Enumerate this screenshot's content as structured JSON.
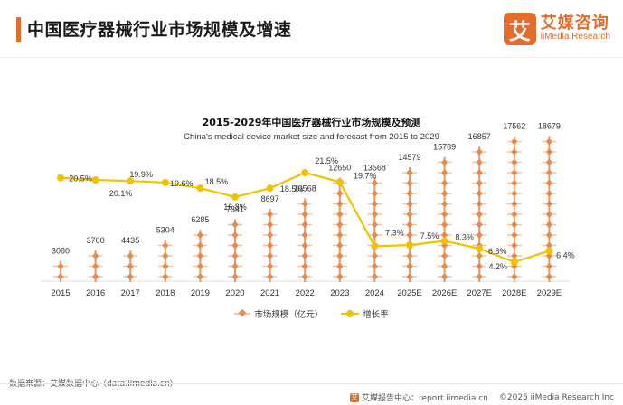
{
  "header": {
    "title": "中国医疗器械行业市场规模及增速",
    "brand_mark": "艾",
    "brand_cn": "艾媒咨询",
    "brand_en": "iiMedia Research"
  },
  "colors": {
    "accent": "#e26d2c",
    "market_icon": "#e9894a",
    "market_icon_light": "#f3c4a4",
    "growth_line": "#f2c200"
  },
  "chart_data": {
    "type": "bar",
    "title": "2015-2029年中国医疗器械行业市场规模及预测",
    "subtitle": "China's medical device market size and forecast from 2015 to 2029",
    "categories": [
      "2015",
      "2016",
      "2017",
      "2018",
      "2019",
      "2020",
      "2021",
      "2022",
      "2023",
      "2024",
      "2025E",
      "2026E",
      "2027E",
      "2028E",
      "2029E"
    ],
    "series": [
      {
        "name": "市场规模（亿元）",
        "kind": "pictorial-bar",
        "values": [
          3080,
          3700,
          4435,
          5304,
          6285,
          7341,
          8697,
          10568,
          12650,
          13568,
          14579,
          15789,
          16857,
          17562,
          18679
        ],
        "labels": [
          "3080",
          "3700",
          "4435",
          "5304",
          "6285",
          "7341",
          "8697",
          "10568",
          "12650",
          "13568",
          "14579",
          "15789",
          "16857",
          "17562",
          "18679"
        ]
      },
      {
        "name": "增长率",
        "kind": "line",
        "values": [
          20.5,
          20.1,
          19.9,
          19.6,
          18.5,
          16.8,
          18.5,
          21.5,
          19.7,
          7.3,
          7.5,
          8.3,
          6.8,
          4.2,
          6.4
        ],
        "labels": [
          "20.5%",
          "20.1%",
          "19.9%",
          "19.6%",
          "18.5%",
          "16.8%",
          "18.5%",
          "21.5%",
          "19.7%",
          "7.3%",
          "7.5%",
          "8.3%",
          "6.8%",
          "4.2%",
          "6.4%"
        ]
      }
    ],
    "legend": {
      "position": "bottom",
      "items": [
        "市场规模（亿元）",
        "增长率"
      ]
    },
    "grid": false
  },
  "footer": {
    "source": "数据来源：艾媒数据中心（data.iimedia.cn）",
    "report_icon": "艾",
    "report_center": "艾媒报告中心：report.iimedia.cn",
    "copyright": "©2025  iiMedia Research  Inc"
  }
}
